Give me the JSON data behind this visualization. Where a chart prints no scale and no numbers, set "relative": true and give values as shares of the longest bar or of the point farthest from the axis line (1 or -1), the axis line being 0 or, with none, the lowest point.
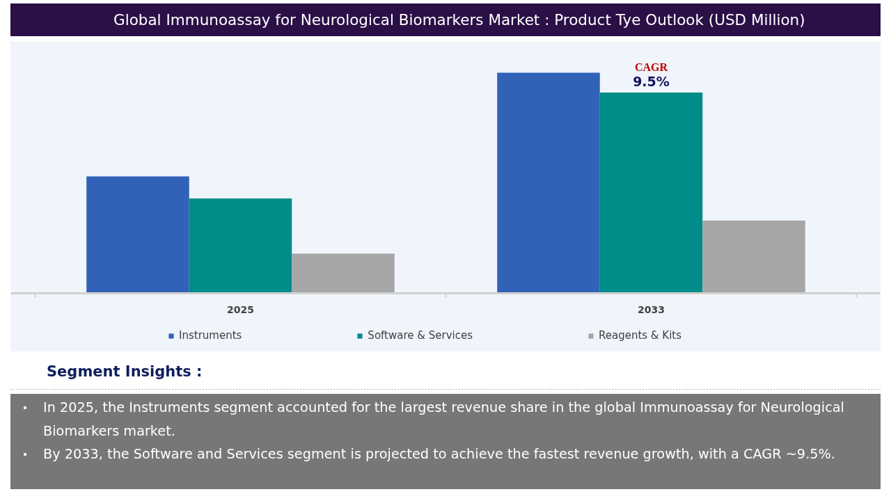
{
  "chart_data": {
    "type": "bar",
    "title": "Global Immunoassay for Neurological Biomarkers Market : Product Tye Outlook (USD Million)",
    "categories": [
      "2025",
      "2033"
    ],
    "series": [
      {
        "name": "Instruments",
        "color": "#3162b8",
        "values": [
          0.53,
          1
        ]
      },
      {
        "name": "Software & Services",
        "color": "#008c88",
        "values": [
          0.43,
          0.91
        ]
      },
      {
        "name": "Reagents & Kits",
        "color": "#a6a6a6",
        "values": [
          0.18,
          0.33
        ]
      }
    ],
    "relative": true,
    "legend": "bottom",
    "annotations": [
      {
        "text": "CAGR",
        "x": "2033",
        "y": 0.91
      },
      {
        "text": "9.5%",
        "x": "2033",
        "y": 0.91
      },
      "Segment Insights :",
      "In 2025, the Instruments segment accounted for the largest revenue share in the global Immunoassay for Neurological Biomarkers market.",
      "By 2033, the Software and Services segment is projected to achieve the fastest revenue growth, with a CAGR ~9.5%."
    ]
  }
}
